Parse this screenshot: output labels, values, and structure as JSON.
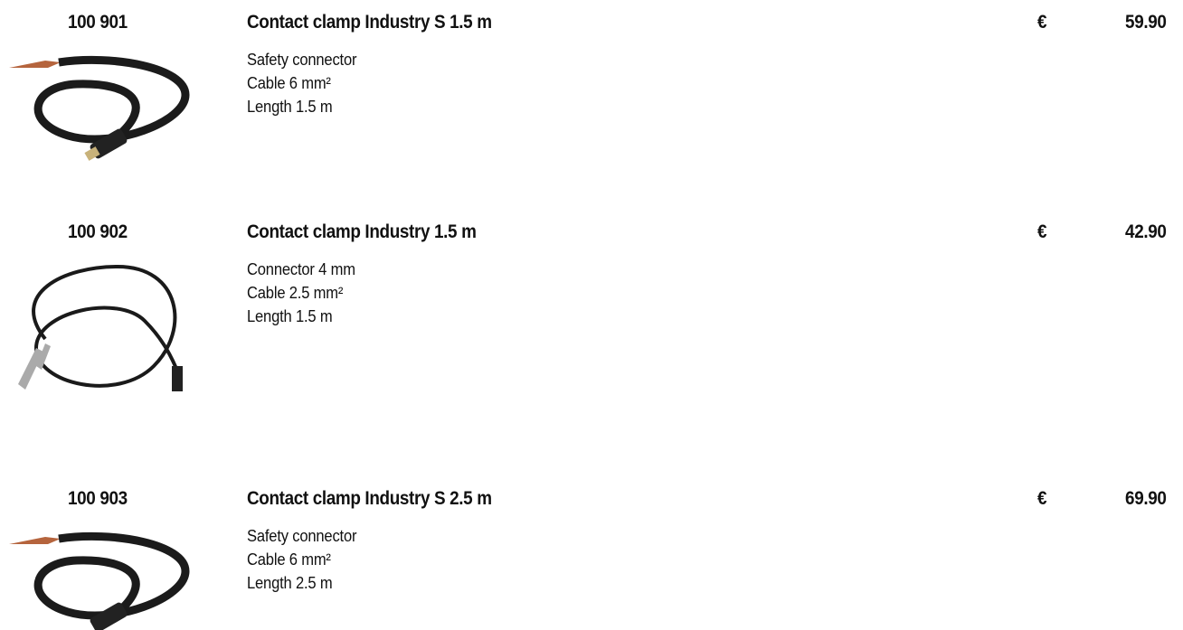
{
  "items": [
    {
      "number": "100 901",
      "title": "Contact clamp Industry S 1.5 m",
      "lines": [
        "Safety connector",
        "Cable 6 mm²",
        "Length 1.5 m"
      ],
      "currency": "€",
      "price": "59.90"
    },
    {
      "number": "100 902",
      "title": "Contact clamp Industry 1.5 m",
      "lines": [
        "Connector 4 mm",
        "Cable 2.5 mm²",
        "Length 1.5 m"
      ],
      "currency": "€",
      "price": "42.90"
    },
    {
      "number": "100 903",
      "title": "Contact clamp Industry S 2.5 m",
      "lines": [
        "Safety connector",
        "Cable 6 mm²",
        "Length 2.5 m"
      ],
      "currency": "€",
      "price": "69.90"
    }
  ]
}
